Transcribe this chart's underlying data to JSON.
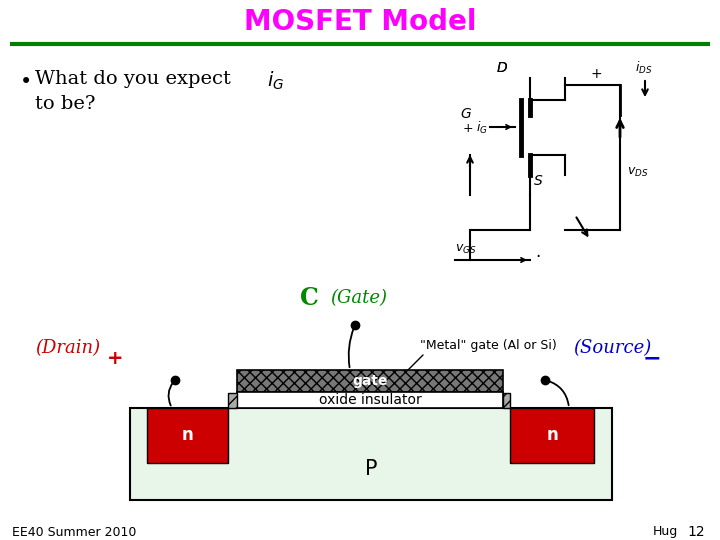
{
  "title": "MOSFET Model",
  "title_color": "#FF00FF",
  "title_fontsize": 20,
  "bg_color": "#FFFFFF",
  "green_line_color": "#008000",
  "drain_label": "(Drain)",
  "drain_color": "#CC0000",
  "source_label": "(Source)",
  "source_color": "#0000CC",
  "gate_label": "(Gate)",
  "gate_color": "#008800",
  "c_label": "C",
  "c_color": "#008800",
  "metal_gate_text": "\"Metal\" gate (Al or Si)",
  "gate_layer_text": "gate",
  "oxide_text": "oxide insulator",
  "p_text": "P",
  "n_left_text": "n",
  "n_right_text": "n",
  "footer_left": "EE40 Summer 2010",
  "footer_right": "Hug",
  "footer_page": "12",
  "footer_color": "#000000",
  "footer_fontsize": 9,
  "p_facecolor": "#e8f5e9",
  "n_facecolor": "#CC0000",
  "gate_metal_facecolor": "#888888",
  "oxide_side_facecolor": "#aaaaaa"
}
